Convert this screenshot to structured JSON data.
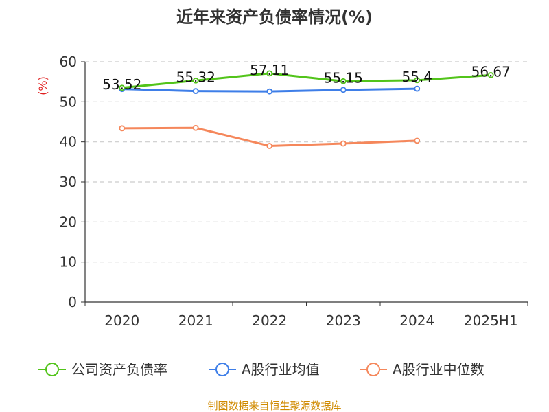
{
  "colors": {
    "company": "#52c41a",
    "industry_avg": "#3e7ee8",
    "industry_median": "#f5875b",
    "source": "#d08a00",
    "unit": "#e02020",
    "grid": "#cccccc",
    "axis": "#333333"
  },
  "chart_data": {
    "type": "line",
    "title": "近年来资产负债率情况(%)",
    "y_unit": "(%)",
    "categories": [
      "2020",
      "2021",
      "2022",
      "2023",
      "2024",
      "2025H1"
    ],
    "ylim": [
      0,
      60
    ],
    "yticks": [
      0,
      10,
      20,
      30,
      40,
      50,
      60
    ],
    "grid": true,
    "legend_position": "bottom",
    "series": [
      {
        "name": "公司资产负债率",
        "color_key": "company",
        "values": [
          53.52,
          55.32,
          57.11,
          55.15,
          55.4,
          56.67
        ],
        "labels": [
          "53.52",
          "55.32",
          "57.11",
          "55.15",
          "55.4",
          "56.67"
        ]
      },
      {
        "name": "A股行业均值",
        "color_key": "industry_avg",
        "values": [
          53.2,
          52.7,
          52.6,
          53.0,
          53.3,
          null
        ]
      },
      {
        "name": "A股行业中位数",
        "color_key": "industry_median",
        "values": [
          43.4,
          43.5,
          39.0,
          39.6,
          40.3,
          null
        ]
      }
    ],
    "source": "制图数据来自恒生聚源数据库"
  }
}
